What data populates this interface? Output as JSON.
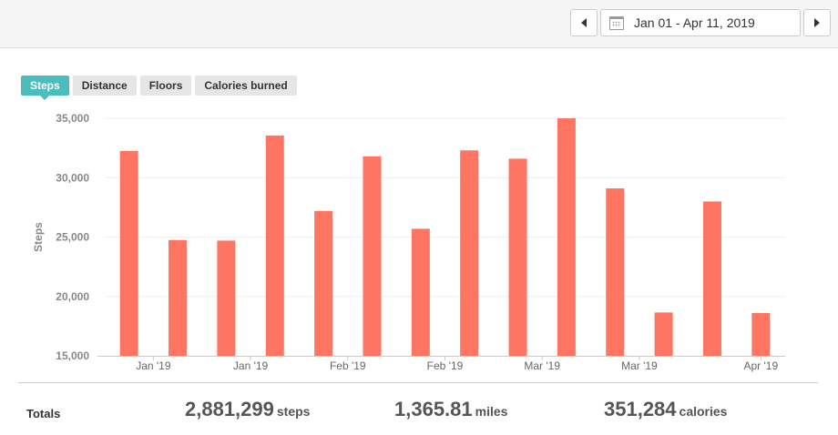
{
  "header": {
    "date_range": "Jan 01 - Apr 11, 2019"
  },
  "tabs": [
    {
      "label": "Steps",
      "active": true
    },
    {
      "label": "Distance",
      "active": false
    },
    {
      "label": "Floors",
      "active": false
    },
    {
      "label": "Calories burned",
      "active": false
    }
  ],
  "chart_data": {
    "type": "bar",
    "ylabel": "Steps",
    "ylim": [
      15000,
      35000
    ],
    "yticks": [
      15000,
      20000,
      25000,
      30000,
      35000
    ],
    "ytick_labels": [
      "15,000",
      "20,000",
      "25,000",
      "30,000",
      "35,000"
    ],
    "xtick_labels": [
      "Jan '19",
      "Jan '19",
      "Feb '19",
      "Feb '19",
      "Mar '19",
      "Mar '19",
      "Apr '19"
    ],
    "xtick_bar_index": [
      0.5,
      2.5,
      4.5,
      6.5,
      8.5,
      10.5,
      13
    ],
    "values": [
      32250,
      24750,
      24700,
      33550,
      27200,
      31800,
      25700,
      32300,
      31600,
      35000,
      29100,
      18650,
      28000,
      18600
    ],
    "bar_color": "#ff7562",
    "grid": true
  },
  "totals": {
    "label": "Totals",
    "steps": {
      "value": "2,881,299",
      "unit": "steps"
    },
    "distance": {
      "value": "1,365.81",
      "unit": "miles"
    },
    "calories": {
      "value": "351,284",
      "unit": "calories"
    }
  }
}
